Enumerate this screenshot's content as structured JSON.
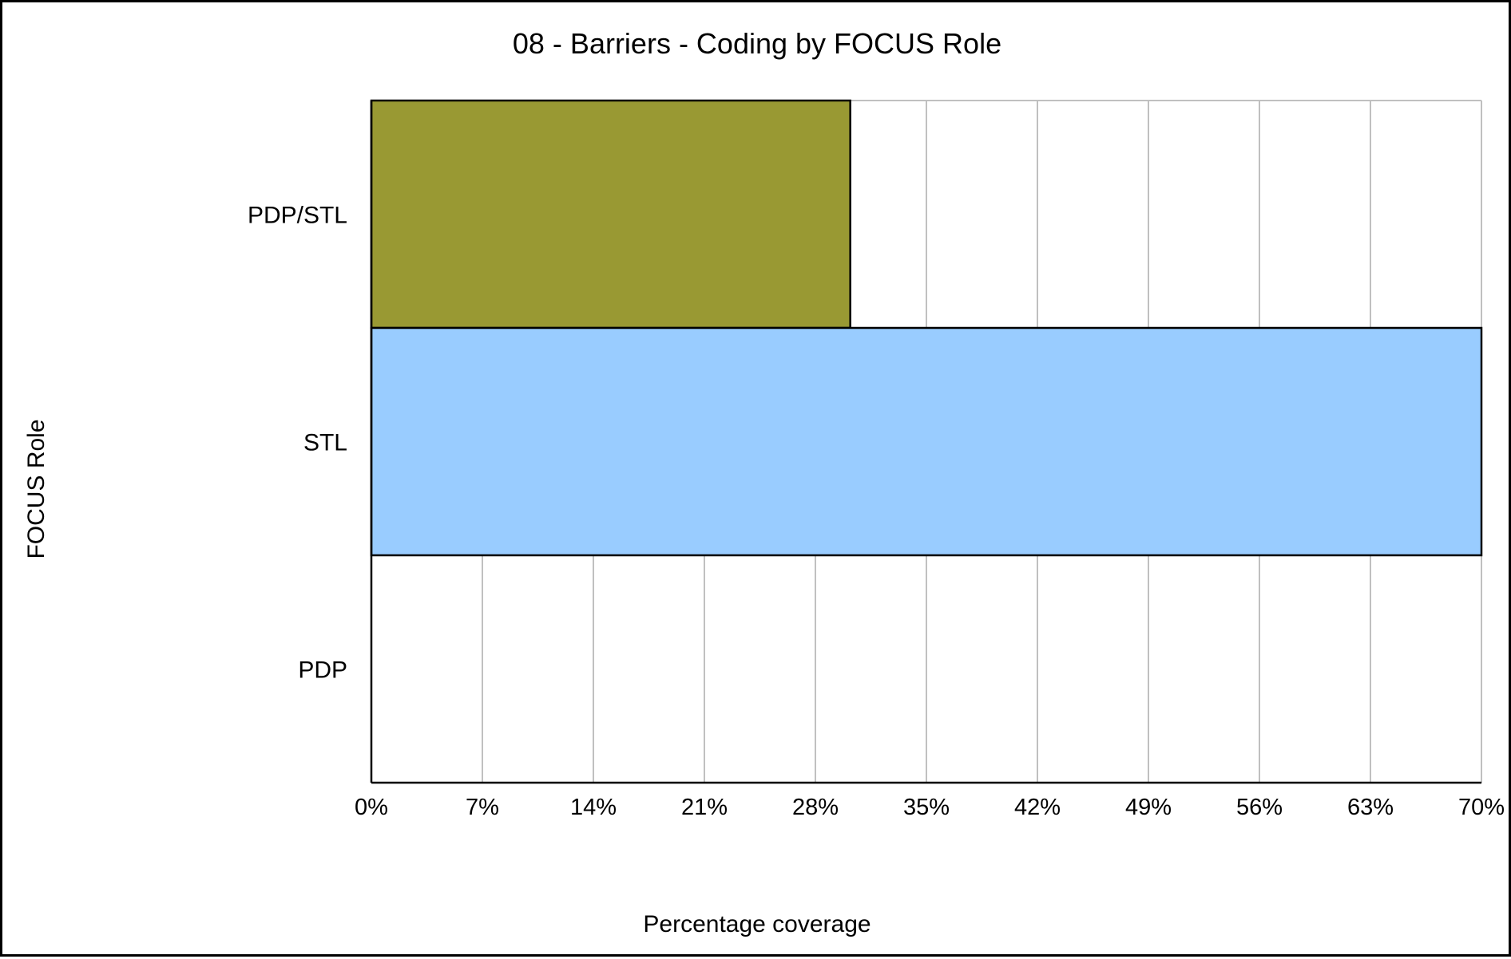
{
  "chart_data": {
    "type": "bar",
    "orientation": "horizontal",
    "title": "08 - Barriers - Coding by FOCUS Role",
    "xlabel": "Percentage coverage",
    "ylabel": "FOCUS Role",
    "categories": [
      "PDP/STL",
      "STL",
      "PDP"
    ],
    "values": [
      30.2,
      70,
      0
    ],
    "colors": [
      "#999933",
      "#99ccff",
      "#ffffff"
    ],
    "xlim": [
      0,
      70
    ],
    "xticks": [
      0,
      7,
      14,
      21,
      28,
      35,
      42,
      49,
      56,
      63,
      70
    ],
    "xtick_labels": [
      "0%",
      "7%",
      "14%",
      "21%",
      "28%",
      "35%",
      "42%",
      "49%",
      "56%",
      "63%",
      "70%"
    ],
    "grid": true
  }
}
